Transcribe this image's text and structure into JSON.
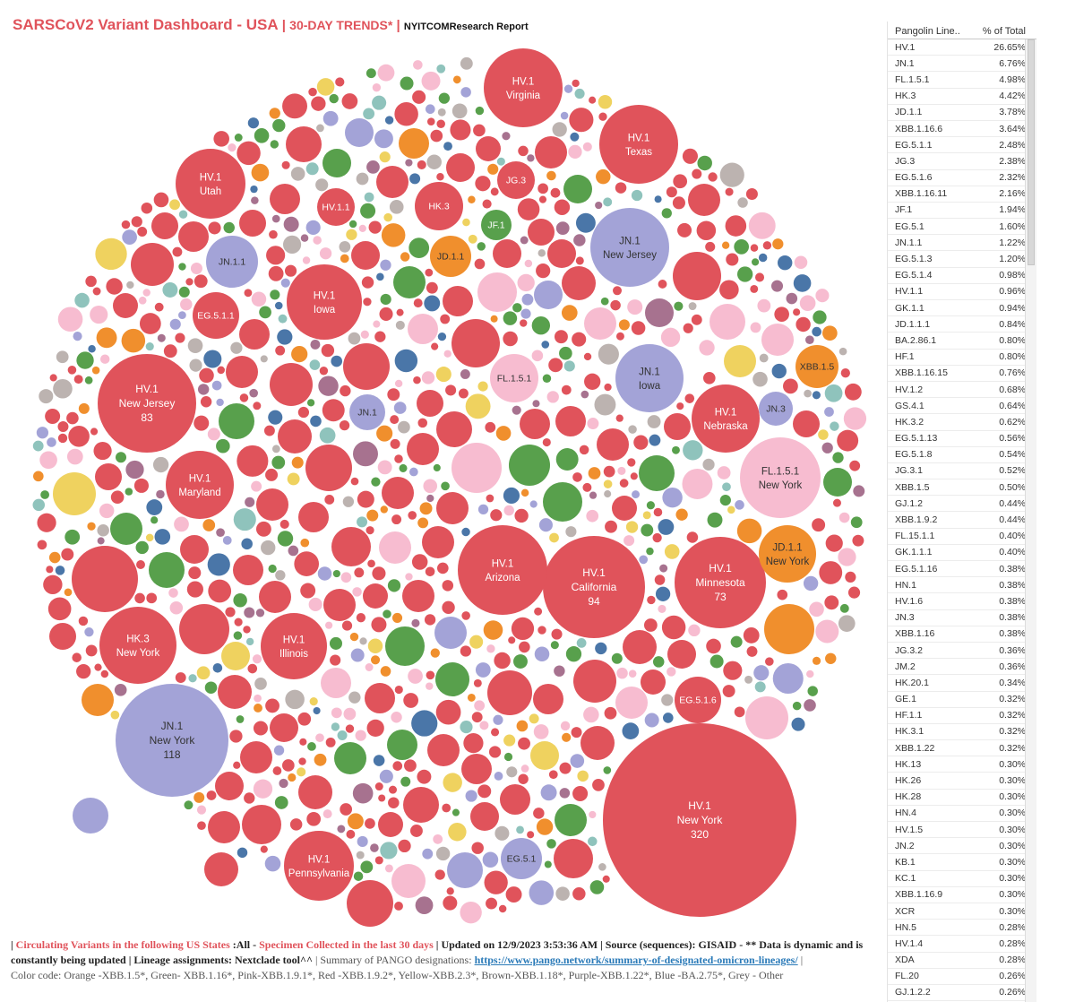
{
  "header": {
    "title": "SARSCoV2 Variant Dashboard - USA",
    "sep1": " | ",
    "trend": "30-DAY TRENDS*",
    "sep2": " | ",
    "org": "NYITCOMResearch Report"
  },
  "colors": {
    "red": "#e0535b",
    "purple": "#a3a3d7",
    "pink": "#f7bcd0",
    "orange": "#f08f2d",
    "green": "#58a04c",
    "yellow": "#efd25f",
    "grey": "#bcb3b0",
    "brown": "#a7728f",
    "blue": "#4a76a8",
    "teal": "#8fc3bc"
  },
  "chart_data": {
    "type": "bubble",
    "description_labels": true,
    "labeled_bubbles": [
      {
        "lineage": "HV.1",
        "state": "New York",
        "count": "320",
        "color": "red"
      },
      {
        "lineage": "JN.1",
        "state": "New York",
        "count": "118",
        "color": "purple"
      },
      {
        "lineage": "HV.1",
        "state": "California",
        "count": "94",
        "color": "red"
      },
      {
        "lineage": "HV.1",
        "state": "New Jersey",
        "count": "83",
        "color": "red"
      },
      {
        "lineage": "HV.1",
        "state": "Minnesota",
        "count": "73",
        "color": "red"
      },
      {
        "lineage": "HV.1",
        "state": "Arizona",
        "count": "",
        "color": "red"
      },
      {
        "lineage": "HV.1",
        "state": "Virginia",
        "count": "",
        "color": "red"
      },
      {
        "lineage": "HV.1",
        "state": "Texas",
        "count": "",
        "color": "red"
      },
      {
        "lineage": "HV.1",
        "state": "Utah",
        "count": "",
        "color": "red"
      },
      {
        "lineage": "HV.1",
        "state": "Iowa",
        "count": "",
        "color": "red"
      },
      {
        "lineage": "JN.1",
        "state": "New Jersey",
        "count": "",
        "color": "purple"
      },
      {
        "lineage": "JN.1",
        "state": "Iowa",
        "count": "",
        "color": "purple"
      },
      {
        "lineage": "HV.1",
        "state": "Nebraska",
        "count": "",
        "color": "red"
      },
      {
        "lineage": "FL.1.5.1",
        "state": "New York",
        "count": "",
        "color": "pink"
      },
      {
        "lineage": "JD.1.1",
        "state": "New York",
        "count": "",
        "color": "orange"
      },
      {
        "lineage": "HV.1",
        "state": "Maryland",
        "count": "",
        "color": "red"
      },
      {
        "lineage": "HK.3",
        "state": "New York",
        "count": "",
        "color": "red"
      },
      {
        "lineage": "HV.1",
        "state": "Illinois",
        "count": "",
        "color": "red"
      },
      {
        "lineage": "HV.1",
        "state": "Pennsylvania",
        "count": "",
        "color": "red"
      },
      {
        "lineage": "JN.1.1",
        "state": "",
        "count": "",
        "color": "purple"
      },
      {
        "lineage": "JN.1",
        "state": "",
        "count": "",
        "color": "purple"
      },
      {
        "lineage": "JD.1.1",
        "state": "",
        "count": "",
        "color": "orange"
      },
      {
        "lineage": "JF.1",
        "state": "",
        "count": "",
        "color": "green"
      },
      {
        "lineage": "JG.3",
        "state": "",
        "count": "",
        "color": "red"
      },
      {
        "lineage": "HK.3",
        "state": "",
        "count": "",
        "color": "red"
      },
      {
        "lineage": "HV.1.1",
        "state": "",
        "count": "",
        "color": "red"
      },
      {
        "lineage": "EG.5.1.1",
        "state": "",
        "count": "",
        "color": "red"
      },
      {
        "lineage": "FL.1.5.1",
        "state": "",
        "count": "",
        "color": "pink"
      },
      {
        "lineage": "XBB.1.5",
        "state": "",
        "count": "",
        "color": "orange"
      },
      {
        "lineage": "JN.3",
        "state": "",
        "count": "",
        "color": "purple"
      },
      {
        "lineage": "EG.5.1.6",
        "state": "",
        "count": "",
        "color": "red"
      },
      {
        "lineage": "EG.5.1",
        "state": "",
        "count": "",
        "color": "purple"
      }
    ]
  },
  "table": {
    "col1": "Pangolin Line..",
    "col2": "% of Total",
    "rows": [
      {
        "name": "HV.1",
        "pct": "26.65%"
      },
      {
        "name": "JN.1",
        "pct": "6.76%"
      },
      {
        "name": "FL.1.5.1",
        "pct": "4.98%"
      },
      {
        "name": "HK.3",
        "pct": "4.42%"
      },
      {
        "name": "JD.1.1",
        "pct": "3.78%"
      },
      {
        "name": "XBB.1.16.6",
        "pct": "3.64%"
      },
      {
        "name": "EG.5.1.1",
        "pct": "2.48%"
      },
      {
        "name": "JG.3",
        "pct": "2.38%"
      },
      {
        "name": "EG.5.1.6",
        "pct": "2.32%"
      },
      {
        "name": "XBB.1.16.11",
        "pct": "2.16%"
      },
      {
        "name": "JF.1",
        "pct": "1.94%"
      },
      {
        "name": "EG.5.1",
        "pct": "1.60%"
      },
      {
        "name": "JN.1.1",
        "pct": "1.22%"
      },
      {
        "name": "EG.5.1.3",
        "pct": "1.20%"
      },
      {
        "name": "EG.5.1.4",
        "pct": "0.98%"
      },
      {
        "name": "HV.1.1",
        "pct": "0.96%"
      },
      {
        "name": "GK.1.1",
        "pct": "0.94%"
      },
      {
        "name": "JD.1.1.1",
        "pct": "0.84%"
      },
      {
        "name": "BA.2.86.1",
        "pct": "0.80%"
      },
      {
        "name": "HF.1",
        "pct": "0.80%"
      },
      {
        "name": "XBB.1.16.15",
        "pct": "0.76%"
      },
      {
        "name": "HV.1.2",
        "pct": "0.68%"
      },
      {
        "name": "GS.4.1",
        "pct": "0.64%"
      },
      {
        "name": "HK.3.2",
        "pct": "0.62%"
      },
      {
        "name": "EG.5.1.13",
        "pct": "0.56%"
      },
      {
        "name": "EG.5.1.8",
        "pct": "0.54%"
      },
      {
        "name": "JG.3.1",
        "pct": "0.52%"
      },
      {
        "name": "XBB.1.5",
        "pct": "0.50%"
      },
      {
        "name": "GJ.1.2",
        "pct": "0.44%"
      },
      {
        "name": "XBB.1.9.2",
        "pct": "0.44%"
      },
      {
        "name": "FL.15.1.1",
        "pct": "0.40%"
      },
      {
        "name": "GK.1.1.1",
        "pct": "0.40%"
      },
      {
        "name": "EG.5.1.16",
        "pct": "0.38%"
      },
      {
        "name": "HN.1",
        "pct": "0.38%"
      },
      {
        "name": "HV.1.6",
        "pct": "0.38%"
      },
      {
        "name": "JN.3",
        "pct": "0.38%"
      },
      {
        "name": "XBB.1.16",
        "pct": "0.38%"
      },
      {
        "name": "JG.3.2",
        "pct": "0.36%"
      },
      {
        "name": "JM.2",
        "pct": "0.36%"
      },
      {
        "name": "HK.20.1",
        "pct": "0.34%"
      },
      {
        "name": "GE.1",
        "pct": "0.32%"
      },
      {
        "name": "HF.1.1",
        "pct": "0.32%"
      },
      {
        "name": "HK.3.1",
        "pct": "0.32%"
      },
      {
        "name": "XBB.1.22",
        "pct": "0.32%"
      },
      {
        "name": "HK.13",
        "pct": "0.30%"
      },
      {
        "name": "HK.26",
        "pct": "0.30%"
      },
      {
        "name": "HK.28",
        "pct": "0.30%"
      },
      {
        "name": "HN.4",
        "pct": "0.30%"
      },
      {
        "name": "HV.1.5",
        "pct": "0.30%"
      },
      {
        "name": "JN.2",
        "pct": "0.30%"
      },
      {
        "name": "KB.1",
        "pct": "0.30%"
      },
      {
        "name": "KC.1",
        "pct": "0.30%"
      },
      {
        "name": "XBB.1.16.9",
        "pct": "0.30%"
      },
      {
        "name": "XCR",
        "pct": "0.30%"
      },
      {
        "name": "HN.5",
        "pct": "0.28%"
      },
      {
        "name": "HV.1.4",
        "pct": "0.28%"
      },
      {
        "name": "XDA",
        "pct": "0.28%"
      },
      {
        "name": "FL.20",
        "pct": "0.26%"
      },
      {
        "name": "GJ.1.2.2",
        "pct": "0.26%"
      }
    ]
  },
  "footer": {
    "p1": "| ",
    "circ": "Circulating Variants in the following US States ",
    "all": ":All - ",
    "spec": "Specimen Collected in the last 30 days ",
    "updated": "| Updated on 12/9/2023 3:53:36 AM | Source (sequences): GISAID - ** Data is dynamic and is constantly being updated | Lineage assignments: Nextclade tool^^",
    "summary": " | Summary of PANGO designations: ",
    "link": "https://www.pango.network/summary-of-designated-omicron-lineages/",
    "pipe": " |",
    "colorcode": "Color code: Orange -XBB.1.5*, Green- XBB.1.16*, Pink-XBB.1.9.1*, Red -XBB.1.9.2*, Yellow-XBB.2.3*, Brown-XBB.1.18*, Purple-XBB.1.22*, Blue -BA.2.75*, Grey - Other"
  }
}
